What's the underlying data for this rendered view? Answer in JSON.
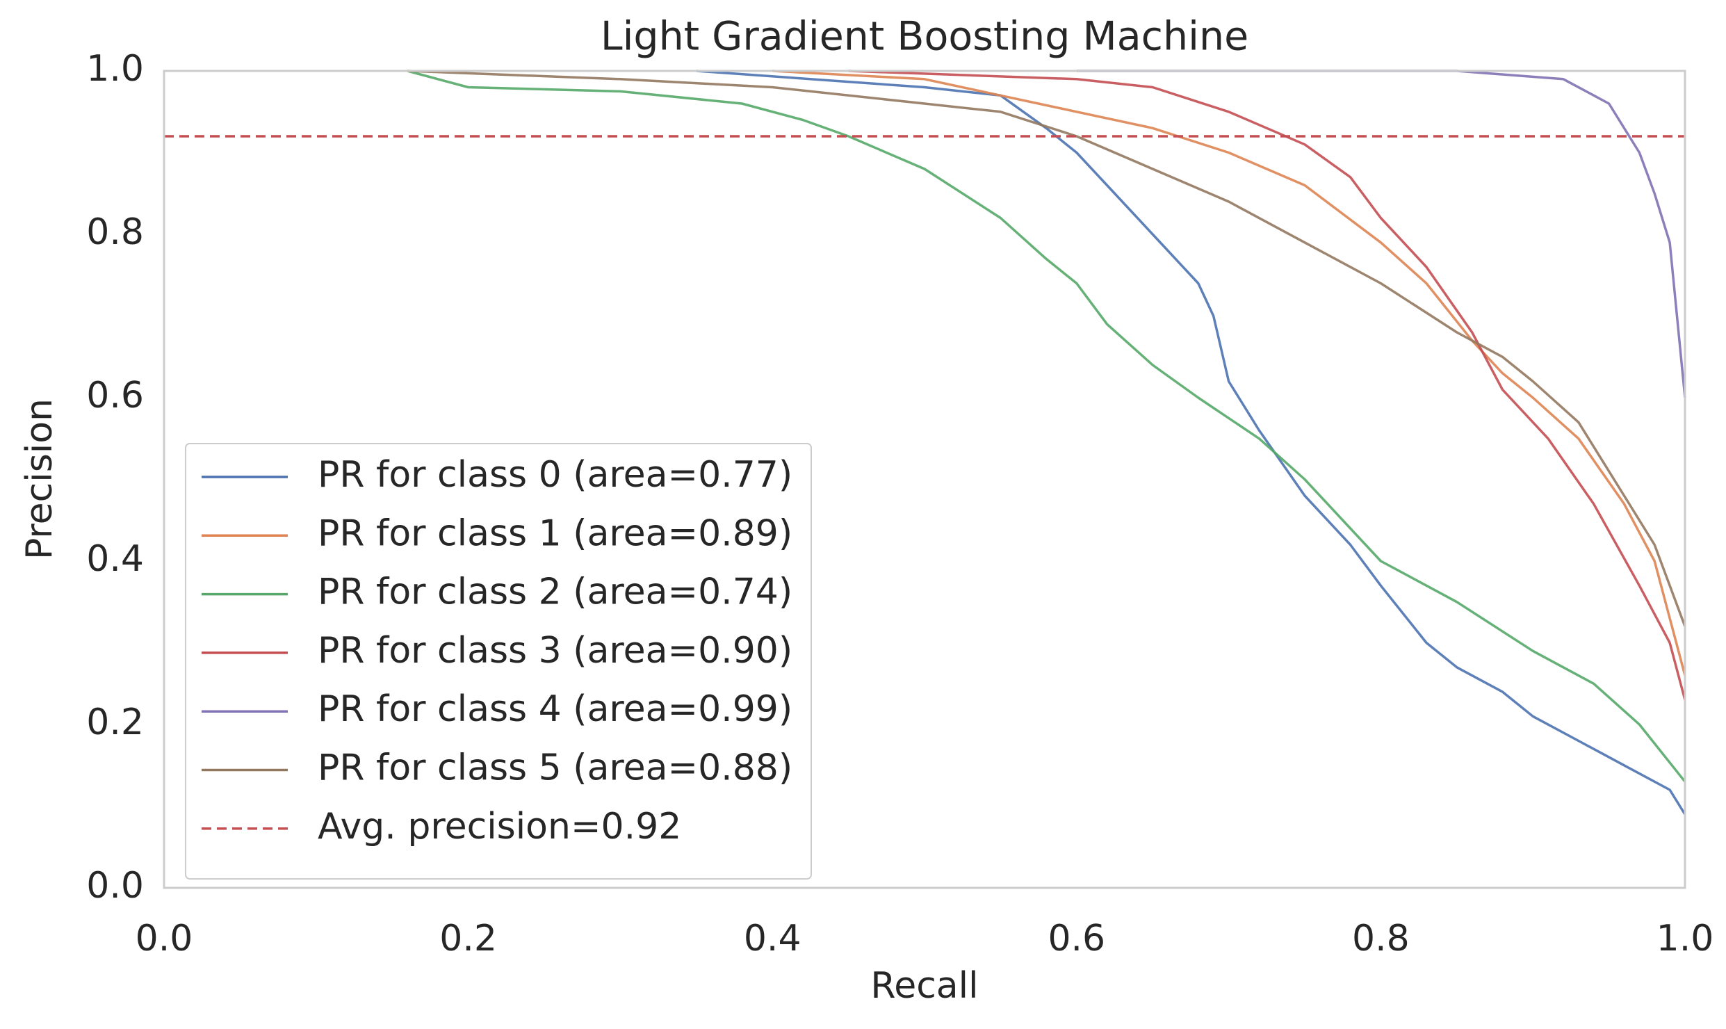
{
  "chart_data": {
    "type": "line",
    "title": "Light Gradient Boosting Machine",
    "x_label": "Recall",
    "y_label": "Precision",
    "xlim": [
      0,
      1
    ],
    "ylim": [
      0,
      1
    ],
    "xticks": [
      {
        "value": 0,
        "label": "0.0"
      },
      0.2,
      0.4,
      0.6,
      0.8,
      {
        "value": 1,
        "label": "1.0"
      }
    ],
    "yticks": [
      {
        "value": 0,
        "label": "0.0"
      },
      0.2,
      0.4,
      0.6,
      0.8,
      {
        "value": 1,
        "label": "1.0"
      }
    ],
    "grid": false,
    "legend": "lower left",
    "series": [
      {
        "name": "PR for class 0 (area=0.77)",
        "color": "#4c72b0",
        "x": [
          0.35,
          0.5,
          0.55,
          0.58,
          0.6,
          0.62,
          0.65,
          0.68,
          0.69,
          0.7,
          0.72,
          0.75,
          0.78,
          0.8,
          0.83,
          0.85,
          0.88,
          0.9,
          0.93,
          0.96,
          0.99,
          1.0
        ],
        "values": [
          1.0,
          0.98,
          0.97,
          0.93,
          0.9,
          0.86,
          0.8,
          0.74,
          0.7,
          0.62,
          0.56,
          0.48,
          0.42,
          0.37,
          0.3,
          0.27,
          0.24,
          0.21,
          0.18,
          0.15,
          0.12,
          0.09
        ]
      },
      {
        "name": "PR for class 1 (area=0.89)",
        "color": "#dd8452",
        "x": [
          0.4,
          0.5,
          0.55,
          0.6,
          0.65,
          0.7,
          0.75,
          0.8,
          0.83,
          0.86,
          0.88,
          0.9,
          0.93,
          0.96,
          0.98,
          1.0
        ],
        "values": [
          1.0,
          0.99,
          0.97,
          0.95,
          0.93,
          0.9,
          0.86,
          0.79,
          0.74,
          0.67,
          0.63,
          0.6,
          0.55,
          0.47,
          0.4,
          0.26
        ]
      },
      {
        "name": "PR for class 2 (area=0.74)",
        "color": "#55a868",
        "x": [
          0.16,
          0.2,
          0.3,
          0.38,
          0.42,
          0.45,
          0.5,
          0.55,
          0.58,
          0.6,
          0.62,
          0.65,
          0.68,
          0.72,
          0.75,
          0.78,
          0.8,
          0.85,
          0.9,
          0.94,
          0.97,
          1.0
        ],
        "values": [
          1.0,
          0.98,
          0.975,
          0.96,
          0.94,
          0.92,
          0.88,
          0.82,
          0.77,
          0.74,
          0.69,
          0.64,
          0.6,
          0.55,
          0.5,
          0.44,
          0.4,
          0.35,
          0.29,
          0.25,
          0.2,
          0.13
        ]
      },
      {
        "name": "PR for class 3 (area=0.90)",
        "color": "#c44e52",
        "x": [
          0.45,
          0.6,
          0.65,
          0.7,
          0.75,
          0.78,
          0.8,
          0.83,
          0.86,
          0.88,
          0.91,
          0.94,
          0.97,
          0.99,
          1.0
        ],
        "values": [
          1.0,
          0.99,
          0.98,
          0.95,
          0.91,
          0.87,
          0.82,
          0.76,
          0.68,
          0.61,
          0.55,
          0.47,
          0.37,
          0.3,
          0.23
        ]
      },
      {
        "name": "PR for class 4 (area=0.99)",
        "color": "#8172b3",
        "x": [
          0.6,
          0.85,
          0.92,
          0.95,
          0.97,
          0.98,
          0.99,
          1.0
        ],
        "values": [
          1.0,
          1.0,
          0.99,
          0.96,
          0.9,
          0.85,
          0.79,
          0.6
        ]
      },
      {
        "name": "PR for class 5 (area=0.88)",
        "color": "#937860",
        "x": [
          0.16,
          0.3,
          0.4,
          0.5,
          0.55,
          0.6,
          0.65,
          0.7,
          0.75,
          0.8,
          0.85,
          0.88,
          0.9,
          0.93,
          0.96,
          0.98,
          1.0
        ],
        "values": [
          1.0,
          0.99,
          0.98,
          0.96,
          0.95,
          0.92,
          0.88,
          0.84,
          0.79,
          0.74,
          0.68,
          0.65,
          0.62,
          0.57,
          0.48,
          0.42,
          0.32
        ]
      }
    ],
    "reference_line": {
      "name": "Avg. precision=0.92",
      "value": 0.92,
      "color": "#c44e52"
    }
  }
}
